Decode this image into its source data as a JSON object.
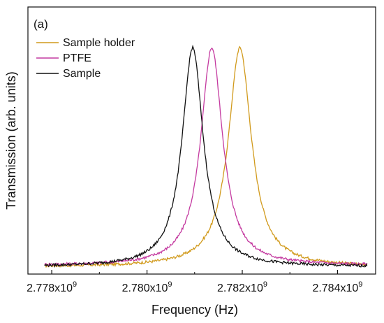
{
  "chart_data": {
    "type": "line",
    "panel_label": "(a)",
    "xlabel": "Frequency (Hz)",
    "ylabel": "Transmission (arb. units)",
    "xlim": [
      2777500000.0,
      2784800000.0
    ],
    "ylim": [
      0,
      1
    ],
    "x_ticks": [
      {
        "value": 2778000000.0,
        "mantissa": "2.778x10",
        "exp": "9"
      },
      {
        "value": 2780000000.0,
        "mantissa": "2.780x10",
        "exp": "9"
      },
      {
        "value": 2782000000.0,
        "mantissa": "2.782x10",
        "exp": "9"
      },
      {
        "value": 2784000000.0,
        "mantissa": "2.784x10",
        "exp": "9"
      }
    ],
    "legend_position": "top-left",
    "series": [
      {
        "name": "Sample holder",
        "color": "#d19a1c",
        "center": 2781950000.0,
        "width": 600000.0,
        "peak": 0.96,
        "base": 0.01,
        "x_min": 2777850000.0,
        "x_max": 2784620000.0
      },
      {
        "name": "PTFE",
        "color": "#c43aa0",
        "center": 2781360000.0,
        "width": 570000.0,
        "peak": 0.96,
        "base": 0.015,
        "x_min": 2777850000.0,
        "x_max": 2784620000.0
      },
      {
        "name": "Sample",
        "color": "#111111",
        "center": 2780960000.0,
        "width": 550000.0,
        "peak": 0.96,
        "base": 0.01,
        "x_min": 2777850000.0,
        "x_max": 2784620000.0
      }
    ]
  }
}
